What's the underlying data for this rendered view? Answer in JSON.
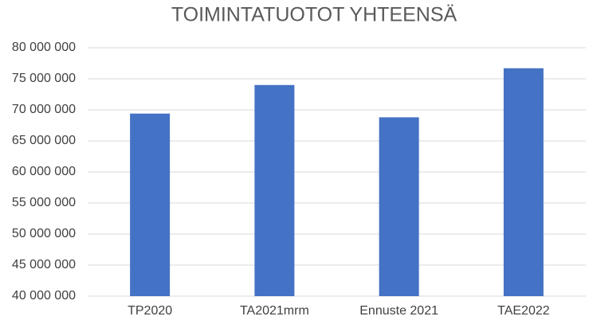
{
  "chart_data": {
    "type": "bar",
    "title": "TOIMINTATUOTOT YHTEENSÄ",
    "categories": [
      "TP2020",
      "TA2021mrm",
      "Ennuste 2021",
      "TAE2022"
    ],
    "values": [
      69400000,
      74000000,
      68800000,
      76700000
    ],
    "color": "#4472c4",
    "ylim": [
      40000000,
      80000000
    ],
    "yticks": [
      {
        "value": 40000000,
        "label": "40 000 000"
      },
      {
        "value": 45000000,
        "label": "45 000 000"
      },
      {
        "value": 50000000,
        "label": "50 000 000"
      },
      {
        "value": 55000000,
        "label": "55 000 000"
      },
      {
        "value": 60000000,
        "label": "60 000 000"
      },
      {
        "value": 65000000,
        "label": "65 000 000"
      },
      {
        "value": 70000000,
        "label": "70 000 000"
      },
      {
        "value": 75000000,
        "label": "75 000 000"
      },
      {
        "value": 80000000,
        "label": "80 000 000"
      }
    ],
    "grid": true
  }
}
